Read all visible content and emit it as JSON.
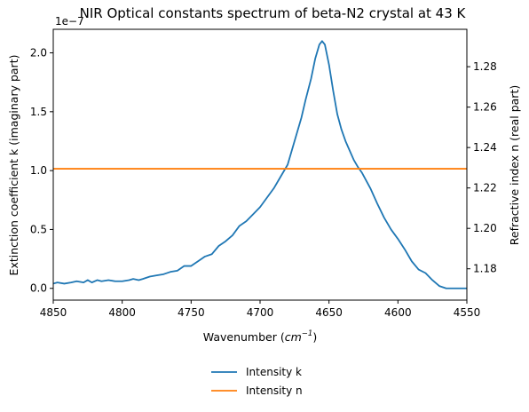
{
  "chart_data": {
    "type": "line",
    "title": "NIR Optical constants spectrum of beta-N2 crystal at 43 K",
    "xlabel_main": "Wavenumber (",
    "xlabel_unit": "cm",
    "xlabel_exp": "−1",
    "xlabel_close": ")",
    "ylabel_left": "Extinction coefficient k (imaginary part)",
    "ylabel_right": "Refractive index n (real part)",
    "offset_text": "1e−7",
    "x_reversed": true,
    "xlim": [
      4850,
      4550
    ],
    "ylim_left": [
      -0.1,
      2.2
    ],
    "ylim_right": [
      1.1645,
      1.2985
    ],
    "xticks": [
      4850,
      4800,
      4750,
      4700,
      4650,
      4600,
      4550
    ],
    "xtick_labels": [
      "4850",
      "4800",
      "4750",
      "4700",
      "4650",
      "4600",
      "4550"
    ],
    "yticks_left": [
      0.0,
      0.5,
      1.0,
      1.5,
      2.0
    ],
    "ytick_labels_left": [
      "0.0",
      "0.5",
      "1.0",
      "1.5",
      "2.0"
    ],
    "yticks_right": [
      1.18,
      1.2,
      1.22,
      1.24,
      1.26,
      1.28
    ],
    "ytick_labels_right": [
      "1.18",
      "1.20",
      "1.22",
      "1.24",
      "1.26",
      "1.28"
    ],
    "grid": false,
    "legend_placement": "below plot",
    "series": [
      {
        "name": "Intensity k",
        "axis": "left",
        "color": "#1f77b4",
        "x": [
          4850,
          4847,
          4842,
          4837,
          4833,
          4828,
          4825,
          4822,
          4818,
          4815,
          4810,
          4805,
          4800,
          4795,
          4792,
          4788,
          4785,
          4780,
          4775,
          4770,
          4765,
          4760,
          4755,
          4750,
          4745,
          4740,
          4735,
          4730,
          4725,
          4720,
          4715,
          4710,
          4705,
          4700,
          4695,
          4690,
          4685,
          4680,
          4675,
          4670,
          4667,
          4663,
          4660,
          4657,
          4655,
          4653,
          4650,
          4647,
          4644,
          4641,
          4638,
          4635,
          4632,
          4629,
          4626,
          4620,
          4615,
          4610,
          4605,
          4600,
          4595,
          4590,
          4585,
          4580,
          4575,
          4570,
          4565,
          4562,
          4558,
          4555,
          4550
        ],
        "y": [
          0.04,
          0.05,
          0.04,
          0.05,
          0.06,
          0.05,
          0.07,
          0.05,
          0.07,
          0.06,
          0.07,
          0.06,
          0.06,
          0.07,
          0.08,
          0.07,
          0.08,
          0.1,
          0.11,
          0.12,
          0.14,
          0.15,
          0.19,
          0.19,
          0.23,
          0.27,
          0.29,
          0.36,
          0.4,
          0.45,
          0.53,
          0.57,
          0.63,
          0.69,
          0.77,
          0.85,
          0.95,
          1.05,
          1.25,
          1.45,
          1.6,
          1.78,
          1.95,
          2.07,
          2.1,
          2.07,
          1.9,
          1.68,
          1.48,
          1.35,
          1.25,
          1.17,
          1.09,
          1.03,
          0.98,
          0.85,
          0.72,
          0.6,
          0.5,
          0.42,
          0.33,
          0.23,
          0.16,
          0.13,
          0.07,
          0.02,
          0.0,
          0.0,
          0.0,
          0.0,
          0.0
        ]
      },
      {
        "name": "Intensity n",
        "axis": "right",
        "color": "#ff7f0e",
        "x": [
          4850,
          4550
        ],
        "y": [
          1.2295,
          1.2295
        ]
      }
    ]
  }
}
